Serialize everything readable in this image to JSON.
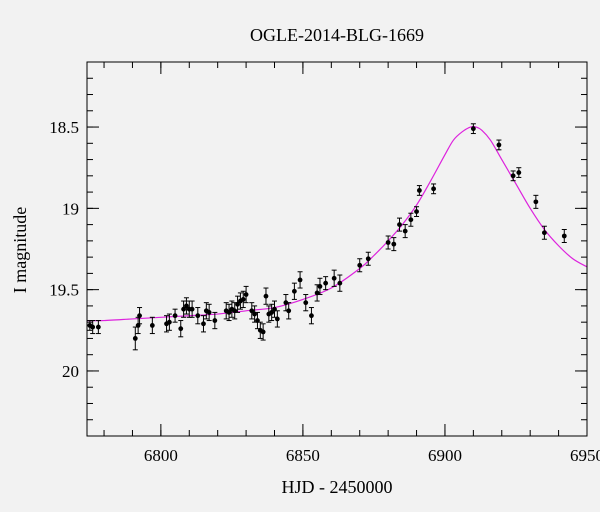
{
  "chart_data": {
    "type": "scatter",
    "title": "OGLE-2014-BLG-1669",
    "xlabel": "HJD - 2450000",
    "ylabel": "I magnitude",
    "xlim": [
      6774,
      6950
    ],
    "ylim": [
      20.4,
      18.1
    ],
    "y_inverted": true,
    "xticks_major": [
      6800,
      6850,
      6900,
      6950
    ],
    "xtick_labels": [
      "6800",
      "6850",
      "6900",
      "6950"
    ],
    "yticks_major": [
      18.5,
      19,
      19.5,
      20
    ],
    "ytick_labels": [
      "18.5",
      "19",
      "19.5",
      "20"
    ],
    "grid": false,
    "colors": {
      "data": "#000000",
      "model": "#dd22dd",
      "background": "#f2f2f2",
      "frame": "#000000"
    },
    "series": [
      {
        "style": "points-with-errorbars",
        "x": [
          6775,
          6776,
          6778,
          6791,
          6792,
          6792.5,
          6797,
          6802,
          6803,
          6805,
          6807,
          6808,
          6809,
          6810,
          6811,
          6813,
          6815,
          6816,
          6817,
          6819,
          6823,
          6824,
          6825,
          6826,
          6827,
          6828,
          6829,
          6830,
          6832,
          6833,
          6834,
          6835,
          6836,
          6837,
          6838,
          6839,
          6840,
          6841,
          6844,
          6845,
          6847,
          6849,
          6851,
          6853,
          6855,
          6856,
          6858,
          6861,
          6863,
          6870,
          6873,
          6880,
          6882,
          6884,
          6886,
          6888,
          6890,
          6891,
          6896,
          6910,
          6919,
          6924,
          6926,
          6932,
          6935,
          6942
        ],
        "y": [
          19.72,
          19.73,
          19.73,
          19.8,
          19.72,
          19.66,
          19.72,
          19.71,
          19.7,
          19.66,
          19.74,
          19.62,
          19.6,
          19.62,
          19.62,
          19.66,
          19.71,
          19.63,
          19.64,
          19.69,
          19.63,
          19.64,
          19.62,
          19.63,
          19.59,
          19.57,
          19.56,
          19.53,
          19.63,
          19.65,
          19.69,
          19.75,
          19.76,
          19.54,
          19.65,
          19.64,
          19.62,
          19.68,
          19.58,
          19.63,
          19.51,
          19.44,
          19.58,
          19.66,
          19.52,
          19.48,
          19.46,
          19.43,
          19.46,
          19.35,
          19.31,
          19.21,
          19.22,
          19.1,
          19.14,
          19.07,
          19.02,
          18.89,
          18.88,
          18.51,
          18.61,
          18.8,
          18.78,
          18.96,
          19.15,
          19.17
        ],
        "err": [
          0.03,
          0.04,
          0.04,
          0.07,
          0.05,
          0.05,
          0.05,
          0.05,
          0.05,
          0.04,
          0.05,
          0.05,
          0.05,
          0.05,
          0.05,
          0.05,
          0.05,
          0.05,
          0.05,
          0.05,
          0.05,
          0.05,
          0.05,
          0.05,
          0.05,
          0.05,
          0.05,
          0.05,
          0.05,
          0.05,
          0.05,
          0.05,
          0.05,
          0.05,
          0.05,
          0.05,
          0.05,
          0.05,
          0.05,
          0.05,
          0.05,
          0.05,
          0.05,
          0.05,
          0.05,
          0.05,
          0.04,
          0.05,
          0.05,
          0.04,
          0.04,
          0.04,
          0.04,
          0.04,
          0.04,
          0.04,
          0.03,
          0.03,
          0.03,
          0.03,
          0.03,
          0.03,
          0.03,
          0.04,
          0.04,
          0.04
        ]
      },
      {
        "style": "model-curve",
        "x": [
          6774,
          6780,
          6790,
          6800,
          6810,
          6820,
          6830,
          6840,
          6850,
          6860,
          6870,
          6875,
          6880,
          6885,
          6890,
          6895,
          6900,
          6903,
          6906,
          6909,
          6911,
          6913,
          6916,
          6920,
          6925,
          6930,
          6935,
          6940,
          6945,
          6950
        ],
        "y": [
          19.69,
          19.69,
          19.68,
          19.67,
          19.66,
          19.65,
          19.63,
          19.61,
          19.56,
          19.49,
          19.37,
          19.29,
          19.2,
          19.1,
          18.98,
          18.83,
          18.67,
          18.58,
          18.53,
          18.5,
          18.5,
          18.52,
          18.58,
          18.7,
          18.85,
          19.0,
          19.13,
          19.23,
          19.31,
          19.36
        ]
      }
    ]
  }
}
